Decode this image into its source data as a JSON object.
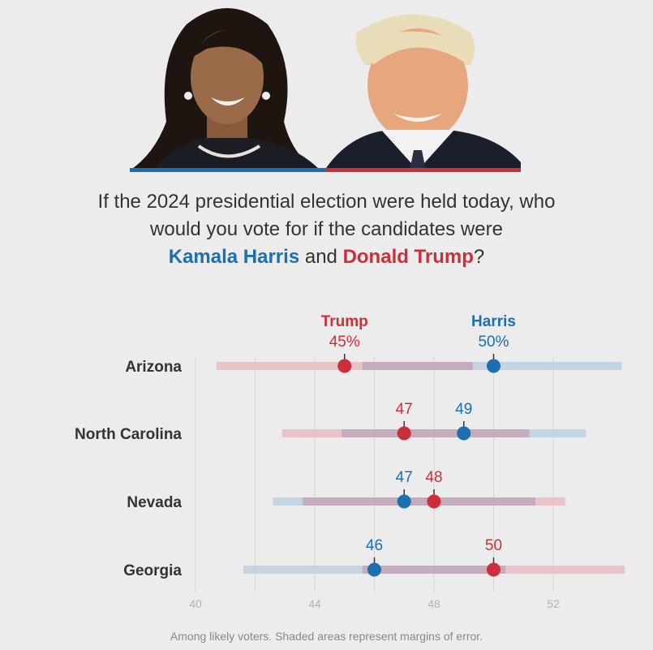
{
  "colors": {
    "harris": "#1c6fb0",
    "trump": "#cc2f3a",
    "harris_band": "#c3d4e3",
    "trump_band": "#e8c3c7",
    "overlap_band": "#c4abbd",
    "grid": "#d6d6d6",
    "tick": "#b3b3b3",
    "text": "#333333"
  },
  "header": {
    "harris_photo_icon": "harris-portrait",
    "trump_photo_icon": "trump-portrait"
  },
  "question": {
    "line1": "If the 2024 presidential election were held today, who",
    "line2": "would you vote for if the candidates were",
    "harris": "Kamala Harris",
    "and": "and",
    "trump": "Donald Trump",
    "qmark": "?"
  },
  "chart_data": {
    "type": "dot-range",
    "xlim": [
      40,
      54.4
    ],
    "xticks": [
      40,
      44,
      48,
      52
    ],
    "grid_at": [
      40,
      42,
      44,
      46,
      48,
      50,
      52
    ],
    "series_names": {
      "trump": "Trump",
      "harris": "Harris"
    },
    "rows": [
      {
        "state": "Arizona",
        "trump": 45,
        "harris": 50,
        "trump_label": "45%",
        "harris_label": "50%",
        "trump_range": [
          40.7,
          49.3
        ],
        "harris_range": [
          45.6,
          54.3
        ],
        "show_names": true
      },
      {
        "state": "North Carolina",
        "trump": 47,
        "harris": 49,
        "trump_label": "47",
        "harris_label": "49",
        "trump_range": [
          42.9,
          51.2
        ],
        "harris_range": [
          44.9,
          53.1
        ],
        "show_names": false
      },
      {
        "state": "Nevada",
        "trump": 48,
        "harris": 47,
        "trump_label": "48",
        "harris_label": "47",
        "trump_range": [
          43.6,
          52.4
        ],
        "harris_range": [
          42.6,
          51.4
        ],
        "show_names": false
      },
      {
        "state": "Georgia",
        "trump": 50,
        "harris": 46,
        "trump_label": "50",
        "harris_label": "46",
        "trump_range": [
          45.6,
          54.4
        ],
        "harris_range": [
          41.6,
          50.4
        ],
        "show_names": false
      }
    ]
  },
  "footnote": "Among likely voters. Shaded areas represent margins of error."
}
